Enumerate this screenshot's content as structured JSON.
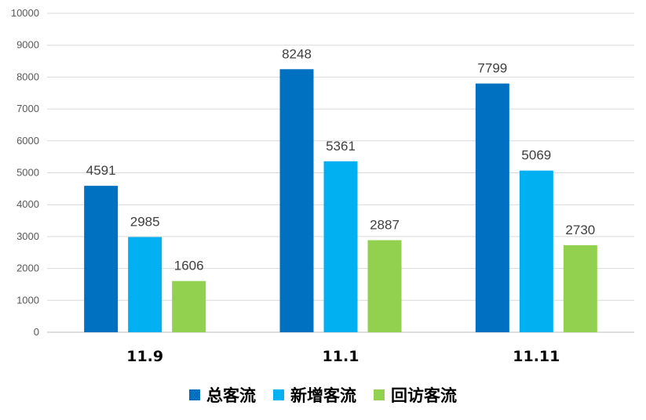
{
  "chart_data": {
    "type": "bar",
    "title": "",
    "xlabel": "",
    "ylabel": "",
    "ylim": [
      0,
      10000
    ],
    "yticks": [
      0,
      1000,
      2000,
      3000,
      4000,
      5000,
      6000,
      7000,
      8000,
      9000,
      10000
    ],
    "categories": [
      "11.9",
      "11.1",
      "11.11"
    ],
    "grid": true,
    "legend_position": "bottom",
    "series": [
      {
        "name": "总客流",
        "color": "#0070c0",
        "values": [
          4591,
          8248,
          7799
        ]
      },
      {
        "name": "新增客流",
        "color": "#00b0f0",
        "values": [
          2985,
          5361,
          5069
        ]
      },
      {
        "name": "回访客流",
        "color": "#92d050",
        "values": [
          1606,
          2887,
          2730
        ]
      }
    ]
  }
}
